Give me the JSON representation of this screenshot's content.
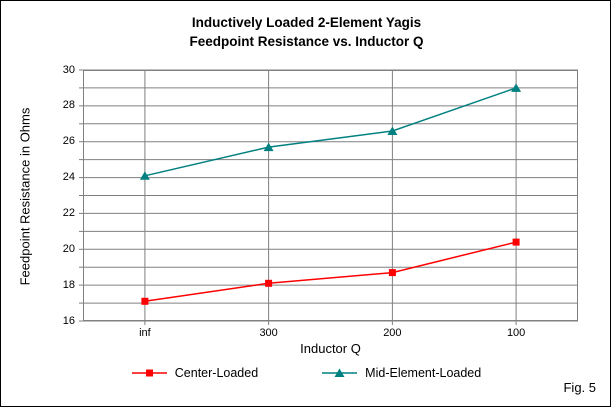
{
  "window": {
    "fig_label": "Fig. 5"
  },
  "chart_data": {
    "type": "line",
    "title": "Inductively Loaded 2-Element Yagis",
    "subtitle": "Feedpoint Resistance vs. Inductor Q",
    "xlabel": "Inductor Q",
    "ylabel": "Feedpoint Resistance in Ohms",
    "categories": [
      "inf",
      "300",
      "200",
      "100"
    ],
    "series": [
      {
        "name": "Center-Loaded",
        "color": "#ff0000",
        "marker": "square",
        "values": [
          17.1,
          18.1,
          18.7,
          20.4
        ]
      },
      {
        "name": "Mid-Element-Loaded",
        "color": "#008080",
        "marker": "triangle",
        "values": [
          24.1,
          25.7,
          26.6,
          29.0
        ]
      }
    ],
    "ylim": [
      16,
      30
    ],
    "ytick_minor_step": 1,
    "ytick_label_step": 2,
    "grid": true,
    "legend_position": "bottom",
    "colors": {
      "grid": "#808080",
      "plot_border": "#808080",
      "background": "#ffffff"
    }
  }
}
